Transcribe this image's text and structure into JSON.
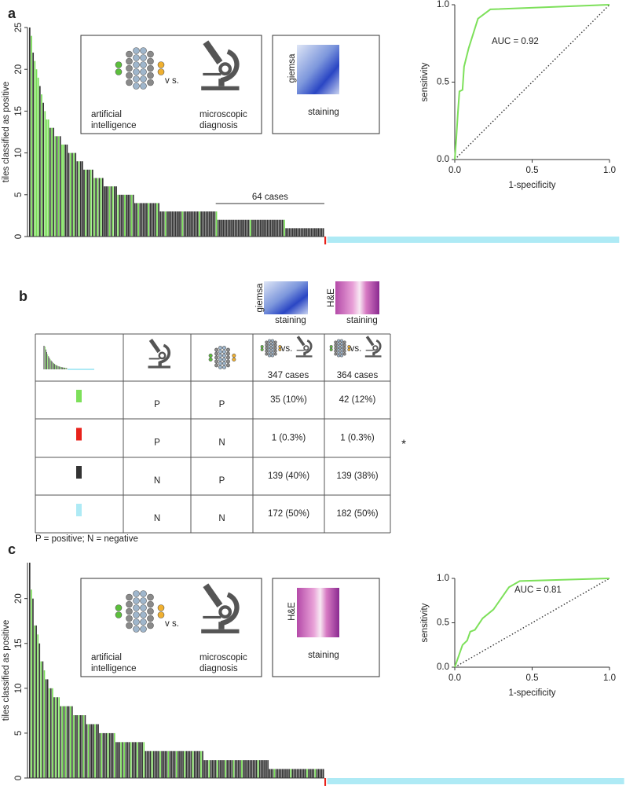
{
  "panel_labels": [
    "a",
    "b",
    "c"
  ],
  "chart_data": [
    {
      "type": "bar",
      "ylabel": "tiles classified as positive",
      "values": [
        25,
        24,
        22,
        21,
        20,
        19,
        18,
        17,
        16,
        15,
        14,
        14,
        13,
        13,
        13,
        12,
        12,
        12,
        12,
        11,
        11,
        11,
        11,
        10,
        10,
        10,
        10,
        10,
        9,
        9,
        9,
        9,
        8,
        8,
        8,
        8,
        8,
        8,
        7,
        7,
        7,
        7,
        7,
        7,
        6,
        6,
        6,
        6,
        6,
        6,
        6,
        6,
        5,
        5,
        5,
        5,
        5,
        5,
        5,
        5,
        5,
        5,
        4,
        4,
        4,
        4,
        4,
        4,
        4,
        4,
        4,
        4,
        4,
        4,
        4,
        4,
        4,
        3,
        3,
        3,
        3,
        3,
        3,
        3,
        3,
        3,
        3,
        3,
        3,
        3,
        3,
        3,
        3,
        3,
        3,
        3,
        3,
        3,
        3,
        3,
        3,
        3,
        3,
        3,
        3,
        3,
        3,
        3,
        3,
        3,
        3,
        2,
        2,
        2,
        2,
        2,
        2,
        2,
        2,
        2,
        2,
        2,
        2,
        2,
        2,
        2,
        2,
        2,
        2,
        2,
        2,
        2,
        2,
        2,
        2,
        2,
        2,
        2,
        2,
        2,
        2,
        2,
        2,
        2,
        2,
        2,
        2,
        2,
        2,
        2,
        2,
        1,
        1,
        1,
        1,
        1,
        1,
        1,
        1,
        1,
        1,
        1,
        1,
        1,
        1,
        1,
        1,
        1,
        1,
        1,
        1,
        1,
        1,
        1
      ],
      "colors": [
        "#333",
        "#7d5",
        "#333",
        "#7d5",
        "#7d5",
        "#7d5",
        "#333",
        "#7d5",
        "#333",
        "#7d5",
        "#7d5",
        "#7d5",
        "#333",
        "#7d5",
        "#333",
        "#7d5",
        "#333",
        "#7d5",
        "#333",
        "#7d5",
        "#7d5",
        "#333",
        "#333",
        "#333",
        "#7d5",
        "#333",
        "#7d5",
        "#333",
        "#333",
        "#7d5",
        "#333",
        "#333",
        "#333",
        "#7d5",
        "#333",
        "#333",
        "#7d5",
        "#333",
        "#7d5",
        "#333",
        "#7d5",
        "#333",
        "#7d5",
        "#333",
        "#333",
        "#333",
        "#333",
        "#7d5",
        "#333",
        "#7d5",
        "#333",
        "#333",
        "#7d5",
        "#333",
        "#333",
        "#333",
        "#7d5",
        "#333",
        "#333",
        "#333",
        "#7d5",
        "#333",
        "#333",
        "#333",
        "#7d5",
        "#333",
        "#333",
        "#333",
        "#333",
        "#333",
        "#7d5",
        "#333",
        "#333",
        "#333",
        "#333",
        "#7d5",
        "#333",
        "#333",
        "#333",
        "#333",
        "#7d5",
        "#333",
        "#333",
        "#333",
        "#333",
        "#333",
        "#333",
        "#333",
        "#333",
        "#333",
        "#7d5",
        "#333",
        "#333",
        "#333",
        "#333",
        "#333",
        "#333",
        "#333",
        "#333",
        "#333",
        "#7d5",
        "#333",
        "#333",
        "#333",
        "#333",
        "#333",
        "#333",
        "#333",
        "#333",
        "#333",
        "#7d5",
        "#333",
        "#333",
        "#333",
        "#333",
        "#333",
        "#333",
        "#333",
        "#333",
        "#333",
        "#333",
        "#333",
        "#333",
        "#333",
        "#333",
        "#333",
        "#333",
        "#333",
        "#333",
        "#333",
        "#7d5",
        "#333",
        "#333",
        "#333",
        "#333",
        "#333",
        "#333",
        "#333",
        "#333",
        "#333",
        "#333",
        "#333",
        "#333",
        "#333",
        "#333",
        "#333",
        "#333",
        "#333",
        "#333",
        "#333",
        "#7d5",
        "#333",
        "#333",
        "#333",
        "#333",
        "#333",
        "#333",
        "#333",
        "#333",
        "#333",
        "#333",
        "#333",
        "#333",
        "#333",
        "#333",
        "#333",
        "#333",
        "#333",
        "#333",
        "#333",
        "#333",
        "#333",
        "#333",
        "#333"
      ],
      "discordant_cases": 1,
      "discordant_color": "#e8221b",
      "negative_cases": 172,
      "negative_color": "#aeeaf5",
      "bracket_cases": 64,
      "annotation": "64 cases",
      "ylim": [
        0,
        25
      ],
      "yticks": [
        0,
        5,
        10,
        15,
        20,
        25
      ]
    },
    {
      "type": "line",
      "xlabel": "1-specificity",
      "ylabel": "sensitivity",
      "annotation": "AUC = 0.92",
      "color": "#7de05a",
      "x": [
        0,
        0.01,
        0.02,
        0.03,
        0.05,
        0.06,
        0.09,
        0.15,
        0.23,
        1.0
      ],
      "values": [
        0,
        0.14,
        0.3,
        0.44,
        0.45,
        0.6,
        0.72,
        0.91,
        0.97,
        1.0
      ],
      "diagonal": true,
      "xlim": [
        0,
        1
      ],
      "ylim": [
        0,
        1
      ],
      "xticks": [
        {
          "value": 0,
          "label": "0.0"
        },
        {
          "value": 0.5,
          "label": "0.5"
        },
        {
          "value": 1,
          "label": "1.0"
        }
      ],
      "yticks": [
        {
          "value": 0,
          "label": "0.0"
        },
        {
          "value": 0.5,
          "label": "0.5"
        },
        {
          "value": 1,
          "label": "1.0"
        }
      ]
    },
    {
      "type": "bar",
      "ylabel": "tiles classified as positive",
      "values": [
        24,
        21,
        20,
        17,
        17,
        16,
        15,
        13,
        13,
        12,
        11,
        11,
        10,
        10,
        10,
        9,
        9,
        9,
        9,
        8,
        8,
        8,
        8,
        8,
        8,
        8,
        8,
        7,
        7,
        7,
        7,
        7,
        7,
        7,
        7,
        6,
        6,
        6,
        6,
        6,
        6,
        6,
        6,
        5,
        5,
        5,
        5,
        5,
        5,
        5,
        5,
        5,
        5,
        4,
        4,
        4,
        4,
        4,
        4,
        4,
        4,
        4,
        4,
        4,
        4,
        4,
        4,
        4,
        4,
        4,
        4,
        3,
        3,
        3,
        3,
        3,
        3,
        3,
        3,
        3,
        3,
        3,
        3,
        3,
        3,
        3,
        3,
        3,
        3,
        3,
        3,
        3,
        3,
        3,
        3,
        3,
        3,
        3,
        3,
        3,
        3,
        3,
        3,
        3,
        3,
        3,
        3,
        2,
        2,
        2,
        2,
        2,
        2,
        2,
        2,
        2,
        2,
        2,
        2,
        2,
        2,
        2,
        2,
        2,
        2,
        2,
        2,
        2,
        2,
        2,
        2,
        2,
        2,
        2,
        2,
        2,
        2,
        2,
        2,
        2,
        2,
        2,
        2,
        2,
        2,
        2,
        2,
        1,
        1,
        1,
        1,
        1,
        1,
        1,
        1,
        1,
        1,
        1,
        1,
        1,
        1,
        1,
        1,
        1,
        1,
        1,
        1,
        1,
        1,
        1,
        1,
        1,
        1,
        1,
        1,
        1,
        1,
        1,
        1,
        1,
        1
      ],
      "colors": [
        "#333",
        "#7d5",
        "#333",
        "#7d5",
        "#333",
        "#7d5",
        "#333",
        "#7d5",
        "#333",
        "#7d5",
        "#333",
        "#333",
        "#7d5",
        "#333",
        "#7d5",
        "#333",
        "#7d5",
        "#333",
        "#7d5",
        "#333",
        "#7d5",
        "#333",
        "#7d5",
        "#333",
        "#333",
        "#7d5",
        "#333",
        "#7d5",
        "#333",
        "#333",
        "#7d5",
        "#333",
        "#333",
        "#7d5",
        "#333",
        "#333",
        "#7d5",
        "#333",
        "#333",
        "#333",
        "#7d5",
        "#333",
        "#333",
        "#333",
        "#7d5",
        "#333",
        "#333",
        "#333",
        "#7d5",
        "#333",
        "#333",
        "#333",
        "#7d5",
        "#333",
        "#333",
        "#333",
        "#7d5",
        "#333",
        "#7d5",
        "#333",
        "#333",
        "#333",
        "#7d5",
        "#333",
        "#333",
        "#333",
        "#7d5",
        "#333",
        "#333",
        "#333",
        "#7d5",
        "#333",
        "#333",
        "#333",
        "#333",
        "#7d5",
        "#333",
        "#333",
        "#333",
        "#333",
        "#7d5",
        "#333",
        "#333",
        "#333",
        "#333",
        "#7d5",
        "#333",
        "#333",
        "#333",
        "#333",
        "#7d5",
        "#333",
        "#333",
        "#333",
        "#333",
        "#7d5",
        "#333",
        "#333",
        "#333",
        "#333",
        "#7d5",
        "#333",
        "#333",
        "#333",
        "#333",
        "#7d5",
        "#333",
        "#333",
        "#333",
        "#333",
        "#7d5",
        "#333",
        "#333",
        "#333",
        "#333",
        "#7d5",
        "#333",
        "#333",
        "#333",
        "#333",
        "#7d5",
        "#333",
        "#333",
        "#333",
        "#333",
        "#7d5",
        "#333",
        "#333",
        "#333",
        "#333",
        "#7d5",
        "#333",
        "#333",
        "#333",
        "#333",
        "#333",
        "#333",
        "#333",
        "#333",
        "#333",
        "#7d5",
        "#333",
        "#333",
        "#333",
        "#333",
        "#333",
        "#333",
        "#333",
        "#333",
        "#333",
        "#7d5",
        "#333",
        "#333",
        "#333",
        "#333",
        "#333",
        "#333",
        "#333",
        "#333",
        "#333",
        "#7d5",
        "#333",
        "#333",
        "#333",
        "#333",
        "#333",
        "#333",
        "#333",
        "#333",
        "#333",
        "#7d5",
        "#333",
        "#333",
        "#333",
        "#333",
        "#7d5",
        "#333",
        "#333",
        "#333",
        "#333",
        "#333"
      ],
      "discordant_cases": 1,
      "discordant_color": "#e8221b",
      "negative_cases": 182,
      "negative_color": "#aeeaf5",
      "ylim": [
        0,
        24
      ],
      "yticks": [
        0,
        5,
        10,
        15,
        20
      ]
    },
    {
      "type": "line",
      "xlabel": "1-specificity",
      "ylabel": "sensitivity",
      "annotation": "AUC = 0.81",
      "color": "#7de05a",
      "x": [
        0,
        0.02,
        0.05,
        0.08,
        0.1,
        0.13,
        0.18,
        0.25,
        0.35,
        0.42,
        1.0
      ],
      "values": [
        0,
        0.1,
        0.25,
        0.3,
        0.4,
        0.42,
        0.55,
        0.65,
        0.9,
        0.97,
        1.0
      ],
      "diagonal": true,
      "xlim": [
        0,
        1
      ],
      "ylim": [
        0,
        1
      ],
      "xticks": [
        {
          "value": 0,
          "label": "0.0"
        },
        {
          "value": 0.5,
          "label": "0.5"
        },
        {
          "value": 1,
          "label": "1.0"
        }
      ],
      "yticks": [
        {
          "value": 0,
          "label": "0.0"
        },
        {
          "value": 0.5,
          "label": "0.5"
        },
        {
          "value": 1,
          "label": "1.0"
        }
      ]
    }
  ],
  "insets": [
    {
      "left": [
        "artificial",
        "intelligence"
      ],
      "vs": "v s.",
      "right": [
        "microscopic",
        "diagnosis"
      ],
      "stain": "giemsa",
      "caption": "staining"
    },
    {
      "left": [
        "artificial",
        "intelligence"
      ],
      "vs": "v s.",
      "right": [
        "microscopic",
        "diagnosis"
      ],
      "stain": "H&E",
      "caption": "staining"
    }
  ],
  "table": {
    "stains": [
      {
        "name": "giemsa",
        "caption": "staining"
      },
      {
        "name": "H&E",
        "caption": "staining"
      }
    ],
    "vs": "vs.",
    "case_counts": [
      "347 cases",
      "364 cases"
    ],
    "rows": [
      {
        "color": "#7de05a",
        "cells": [
          "P",
          "P",
          "35 (10%)",
          "42 (12%)"
        ]
      },
      {
        "color": "#e8221b",
        "cells": [
          "P",
          "N",
          "1 (0.3%)",
          "1 (0.3%)"
        ],
        "note": "*"
      },
      {
        "color": "#333333",
        "cells": [
          "N",
          "P",
          "139 (40%)",
          "139 (38%)"
        ]
      },
      {
        "color": "#aeeaf5",
        "cells": [
          "N",
          "N",
          "172 (50%)",
          "182 (50%)"
        ]
      }
    ],
    "footnote": "P = positive; N = negative"
  }
}
